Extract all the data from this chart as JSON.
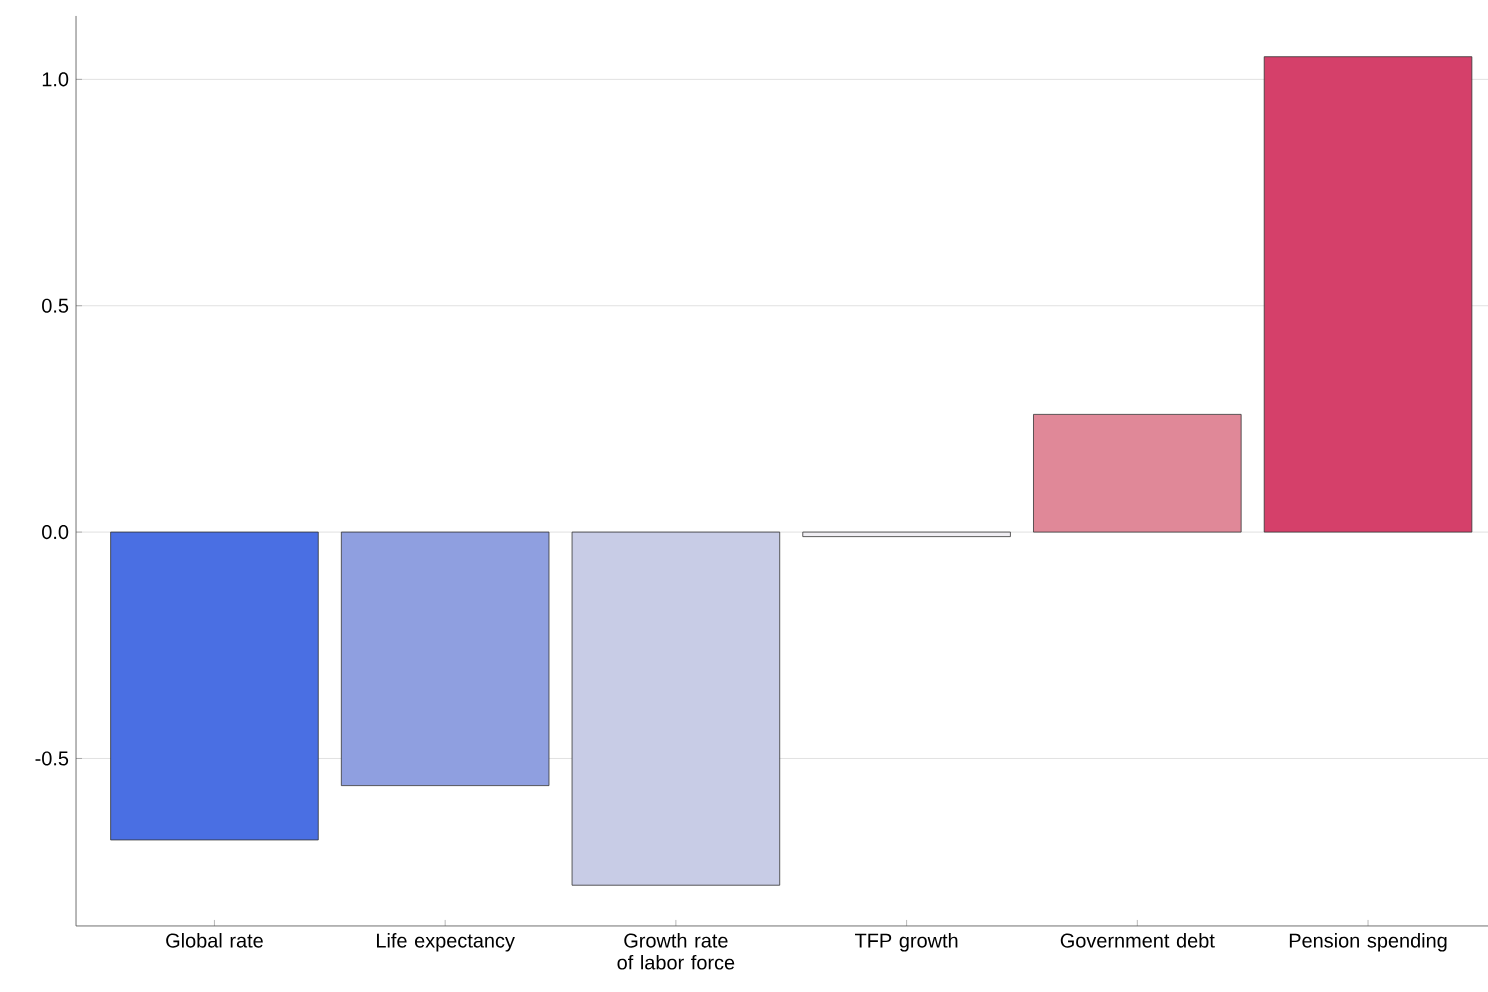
{
  "chart_data": {
    "type": "bar",
    "categories": [
      "Global rate",
      "Life expectancy",
      "Growth rate of labor force",
      "TFP growth",
      "Government debt",
      "Pension spending"
    ],
    "values": [
      -0.68,
      -0.56,
      -0.78,
      -0.01,
      0.26,
      1.05
    ],
    "colors": [
      "#4a6fe3",
      "#8f9fe0",
      "#c8cce6",
      "#f0eef3",
      "#e08898",
      "#d5406a"
    ],
    "ylim": [
      -0.87,
      1.14
    ],
    "yticks": [
      {
        "value": -0.5,
        "label": "-0.5"
      },
      {
        "value": 0,
        "label": "0.0"
      },
      {
        "value": 0.5,
        "label": "0.5"
      },
      {
        "value": 1,
        "label": "1.0"
      }
    ],
    "grid": "y"
  }
}
